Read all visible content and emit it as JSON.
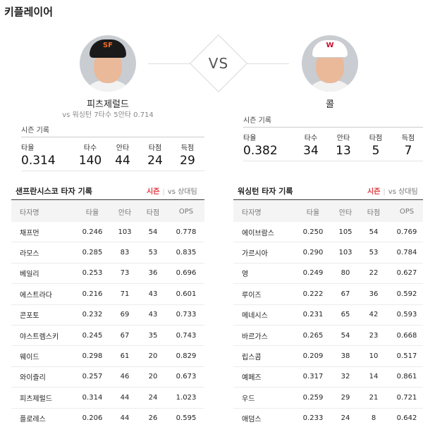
{
  "page": {
    "title": "키플레이어"
  },
  "matchup": {
    "vs_label": "VS",
    "left": {
      "name": "피츠제럴드",
      "subline": "vs 워싱턴  7타수 5안타 0.714",
      "cap_color": "#1a1a1a",
      "logo_color": "#f26a24",
      "stats_title": "시즌 기록",
      "stats": [
        {
          "label": "타율",
          "value": "0.314"
        },
        {
          "label": "타수",
          "value": "140"
        },
        {
          "label": "안타",
          "value": "44"
        },
        {
          "label": "타점",
          "value": "24"
        },
        {
          "label": "득점",
          "value": "29"
        }
      ]
    },
    "right": {
      "name": "콜",
      "cap_color": "#ffffff",
      "logo_color": "#c8102e",
      "stats_title": "시즌 기록",
      "stats": [
        {
          "label": "타율",
          "value": "0.382"
        },
        {
          "label": "타수",
          "value": "34"
        },
        {
          "label": "안타",
          "value": "13"
        },
        {
          "label": "타점",
          "value": "5"
        },
        {
          "label": "득점",
          "value": "7"
        }
      ]
    }
  },
  "tables": {
    "left": {
      "title": "샌프란시스코 타자 기록",
      "tab_active": "시즌",
      "tab_inactive": "vs 상대팀",
      "columns": [
        "타자명",
        "타율",
        "안타",
        "타점",
        "OPS"
      ],
      "rows": [
        [
          "채프먼",
          "0.246",
          "103",
          "54",
          "0.778"
        ],
        [
          "라모스",
          "0.285",
          "83",
          "53",
          "0.835"
        ],
        [
          "베일리",
          "0.253",
          "73",
          "36",
          "0.696"
        ],
        [
          "에스트라다",
          "0.216",
          "71",
          "43",
          "0.601"
        ],
        [
          "콘포토",
          "0.232",
          "69",
          "43",
          "0.733"
        ],
        [
          "야스트렘스키",
          "0.245",
          "67",
          "35",
          "0.743"
        ],
        [
          "웨이드",
          "0.298",
          "61",
          "20",
          "0.829"
        ],
        [
          "와이즐리",
          "0.257",
          "46",
          "20",
          "0.673"
        ],
        [
          "피츠제럴드",
          "0.314",
          "44",
          "24",
          "1.023"
        ],
        [
          "플로레스",
          "0.206",
          "44",
          "26",
          "0.595"
        ]
      ]
    },
    "right": {
      "title": "워싱턴 타자 기록",
      "tab_active": "시즌",
      "tab_inactive": "vs 상대팀",
      "columns": [
        "타자명",
        "타율",
        "안타",
        "타점",
        "OPS"
      ],
      "rows": [
        [
          "에이브람스",
          "0.250",
          "105",
          "54",
          "0.769"
        ],
        [
          "가르시아",
          "0.290",
          "103",
          "53",
          "0.784"
        ],
        [
          "영",
          "0.249",
          "80",
          "22",
          "0.627"
        ],
        [
          "루이즈",
          "0.222",
          "67",
          "36",
          "0.592"
        ],
        [
          "메네시스",
          "0.231",
          "65",
          "42",
          "0.593"
        ],
        [
          "바르가스",
          "0.265",
          "54",
          "23",
          "0.668"
        ],
        [
          "립스콤",
          "0.209",
          "38",
          "10",
          "0.517"
        ],
        [
          "예페즈",
          "0.317",
          "32",
          "14",
          "0.861"
        ],
        [
          "우드",
          "0.259",
          "29",
          "21",
          "0.721"
        ],
        [
          "애덤스",
          "0.233",
          "24",
          "8",
          "0.642"
        ]
      ]
    }
  }
}
